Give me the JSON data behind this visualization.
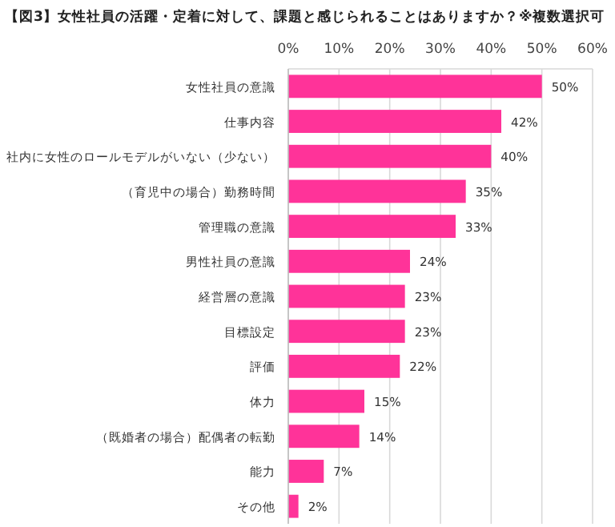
{
  "chart_data": {
    "type": "bar",
    "orientation": "horizontal",
    "title": "【図3】女性社員の活躍・定着に対して、課題と感じられることはありますか？※複数選択可",
    "categories": [
      "女性社員の意識",
      "仕事内容",
      "社内に女性のロールモデルがいない（少ない）",
      "（育児中の場合）勤務時間",
      "管理職の意識",
      "男性社員の意識",
      "経営層の意識",
      "目標設定",
      "評価",
      "体力",
      "（既婚者の場合）配偶者の転勤",
      "能力",
      "その他"
    ],
    "values": [
      50,
      42,
      40,
      35,
      33,
      24,
      23,
      23,
      22,
      15,
      14,
      7,
      2
    ],
    "value_labels": [
      "50%",
      "42%",
      "40%",
      "35%",
      "33%",
      "24%",
      "23%",
      "23%",
      "22%",
      "15%",
      "14%",
      "7%",
      "2%"
    ],
    "color": "#ff3399",
    "xlim": [
      0,
      60
    ],
    "xticks": [
      {
        "value": 0,
        "label": "0%"
      },
      {
        "value": 10,
        "label": "10%"
      },
      {
        "value": 20,
        "label": "20%"
      },
      {
        "value": 30,
        "label": "30%"
      },
      {
        "value": 40,
        "label": "40%"
      },
      {
        "value": 50,
        "label": "50%"
      },
      {
        "value": 60,
        "label": "60%"
      }
    ],
    "grid": "x"
  }
}
